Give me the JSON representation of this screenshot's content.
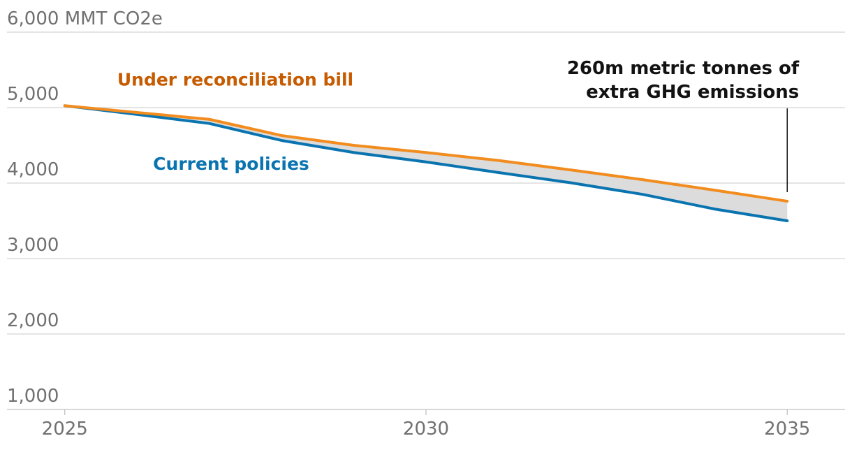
{
  "chart_data": {
    "type": "line",
    "y_unit_label": "MMT CO2e",
    "ylim": [
      1000,
      6000
    ],
    "yticks": [
      {
        "value": 6000,
        "label": "6,000"
      },
      {
        "value": 5000,
        "label": "5,000"
      },
      {
        "value": 4000,
        "label": "4,000"
      },
      {
        "value": 3000,
        "label": "3,000"
      },
      {
        "value": 2000,
        "label": "2,000"
      },
      {
        "value": 1000,
        "label": "1,000"
      }
    ],
    "xlim": [
      2024.2,
      2035.8
    ],
    "xticks": [
      {
        "value": 2025,
        "label": "2025"
      },
      {
        "value": 2030,
        "label": "2030"
      },
      {
        "value": 2035,
        "label": "2035"
      }
    ],
    "x": [
      2025,
      2026,
      2027,
      2028,
      2029,
      2030,
      2031,
      2032,
      2033,
      2034,
      2035
    ],
    "series": [
      {
        "name": "Under reconciliation bill",
        "color": "#f28c1e",
        "label_color": "#c75b00",
        "values": [
          5025,
          4935,
          4845,
          4630,
          4500,
          4405,
          4300,
          4175,
          4045,
          3905,
          3760
        ]
      },
      {
        "name": "Current policies",
        "color": "#0a74b0",
        "label_color": "#0a74b0",
        "values": [
          5025,
          4910,
          4790,
          4565,
          4405,
          4280,
          4140,
          4005,
          3850,
          3655,
          3500
        ]
      }
    ],
    "shaded_gap": {
      "between": [
        "Under reconciliation bill",
        "Current policies"
      ],
      "color": "#dcdcdc"
    },
    "annotation": {
      "lines": [
        "260m metric tonnes of",
        "extra GHG emissions"
      ],
      "x": 2035,
      "y_top": 4990,
      "y_bottom": 3880
    }
  }
}
